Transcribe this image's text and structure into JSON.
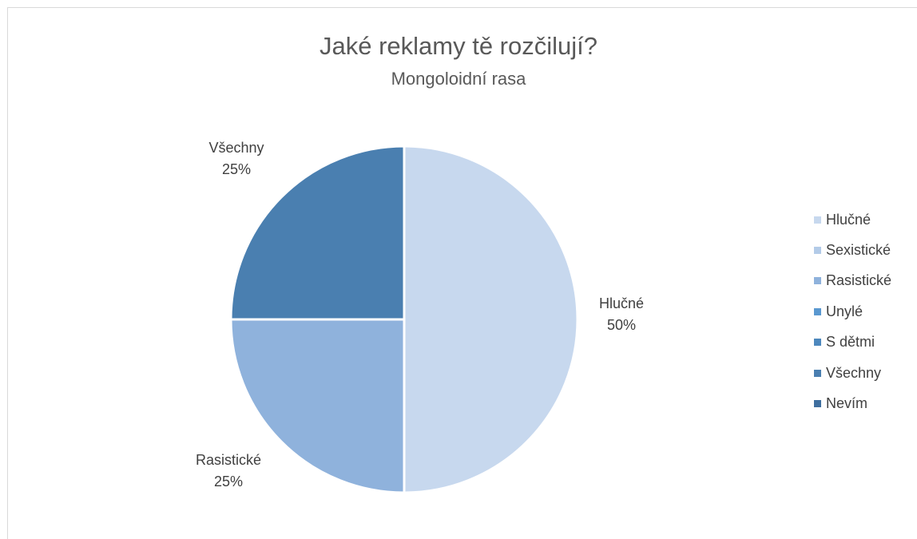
{
  "chart_data": {
    "type": "pie",
    "title": "Jaké reklamy tě rozčilují?",
    "subtitle": "Mongoloidní rasa",
    "legend_position": "right",
    "categories": [
      "Hlučné",
      "Sexistické",
      "Rasistické",
      "Unylé",
      "S dětmi",
      "Všechny",
      "Nevím"
    ],
    "values": [
      50,
      0,
      25,
      0,
      0,
      25,
      0
    ],
    "value_labels": [
      "50%",
      "0%",
      "25%",
      "0%",
      "0%",
      "25%",
      "0%"
    ],
    "colors": [
      "#c7d8ee",
      "#b3cbe8",
      "#8fb2dc",
      "#5a98d0",
      "#4d88bd",
      "#4a7fb0",
      "#3f6f9f"
    ],
    "data_labels": [
      {
        "category": "Hlučné",
        "name": "Hlučné",
        "percent": "50%"
      },
      {
        "category": "Rasistické",
        "name": "Rasistické",
        "percent": "25%"
      },
      {
        "category": "Všechny",
        "name": "Všechny",
        "percent": "25%"
      }
    ]
  }
}
